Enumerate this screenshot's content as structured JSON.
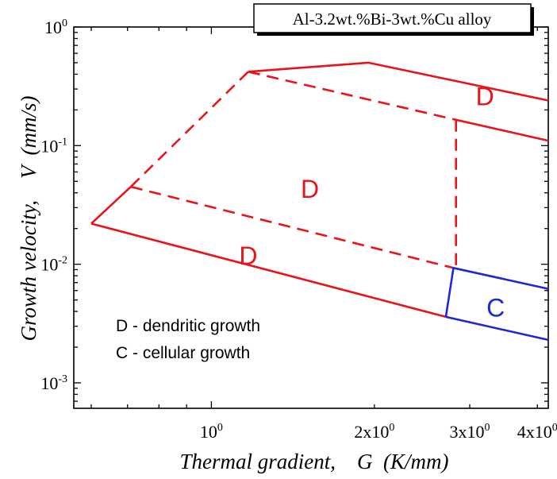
{
  "chart_data": {
    "type": "line",
    "title": "Al-3.2wt.%Bi-3wt.%Cu alloy",
    "xlabel": "Thermal gradient,    G  (K/mm)",
    "ylabel": "Growth velocity,    V  (mm/s)",
    "xscale": "log",
    "yscale": "log",
    "xlim": [
      0.557,
      4.19
    ],
    "ylim": [
      0.00061,
      1.0
    ],
    "xticks": [
      {
        "value": 1,
        "mantissa": "",
        "base": "10",
        "exp": "0"
      },
      {
        "value": 2,
        "mantissa": "2x",
        "base": "10",
        "exp": "0"
      },
      {
        "value": 3,
        "mantissa": "3x",
        "base": "10",
        "exp": "0"
      },
      {
        "value": 4,
        "mantissa": "4x",
        "base": "10",
        "exp": "0"
      }
    ],
    "yticks": [
      {
        "value": 1,
        "base": "10",
        "exp": "0"
      },
      {
        "value": 0.1,
        "base": "10",
        "exp": "-1"
      },
      {
        "value": 0.01,
        "base": "10",
        "exp": "-2"
      },
      {
        "value": 0.001,
        "base": "10",
        "exp": "-3"
      }
    ],
    "colors": {
      "dendritic": "#e8141c",
      "cellular": "#1e28d6",
      "axis": "#000000"
    },
    "series": [
      {
        "style": "solid",
        "color": "dendritic",
        "x": [
          0.6,
          0.71
        ],
        "y": [
          0.022,
          0.045
        ]
      },
      {
        "style": "dashed",
        "color": "dendritic",
        "x": [
          0.71,
          1.17
        ],
        "y": [
          0.045,
          0.42
        ]
      },
      {
        "style": "solid",
        "color": "dendritic",
        "x": [
          1.17,
          1.95,
          4.19
        ],
        "y": [
          0.42,
          0.5,
          0.24
        ]
      },
      {
        "style": "dashed",
        "color": "dendritic",
        "x": [
          1.17,
          2.83
        ],
        "y": [
          0.42,
          0.165
        ]
      },
      {
        "style": "solid",
        "color": "dendritic",
        "x": [
          2.83,
          4.19
        ],
        "y": [
          0.165,
          0.11
        ]
      },
      {
        "style": "dashed",
        "color": "dendritic",
        "x": [
          0.71,
          2.8
        ],
        "y": [
          0.045,
          0.0093
        ]
      },
      {
        "style": "dashed",
        "color": "dendritic",
        "x": [
          2.83,
          2.83
        ],
        "y": [
          0.165,
          0.0093
        ]
      },
      {
        "style": "solid",
        "color": "dendritic",
        "x": [
          0.6,
          2.71
        ],
        "y": [
          0.022,
          0.0036
        ]
      },
      {
        "style": "solid",
        "color": "cellular",
        "x": [
          2.71,
          2.8,
          4.19
        ],
        "y": [
          0.0036,
          0.0093,
          0.0062
        ]
      },
      {
        "style": "solid",
        "color": "cellular",
        "x": [
          2.71,
          4.19
        ],
        "y": [
          0.0036,
          0.0023
        ]
      }
    ],
    "annotations": [
      {
        "text": "D",
        "x": 3.2,
        "y": 0.26,
        "color": "dendritic"
      },
      {
        "text": "D",
        "x": 1.52,
        "y": 0.043,
        "color": "dendritic"
      },
      {
        "text": "D",
        "x": 1.17,
        "y": 0.0118,
        "color": "dendritic"
      },
      {
        "text": "C",
        "x": 3.35,
        "y": 0.0043,
        "color": "cellular"
      }
    ],
    "legend_notes": [
      "D - dendritic growth",
      "C - cellular growth"
    ],
    "legend_placement": "lower-left"
  }
}
